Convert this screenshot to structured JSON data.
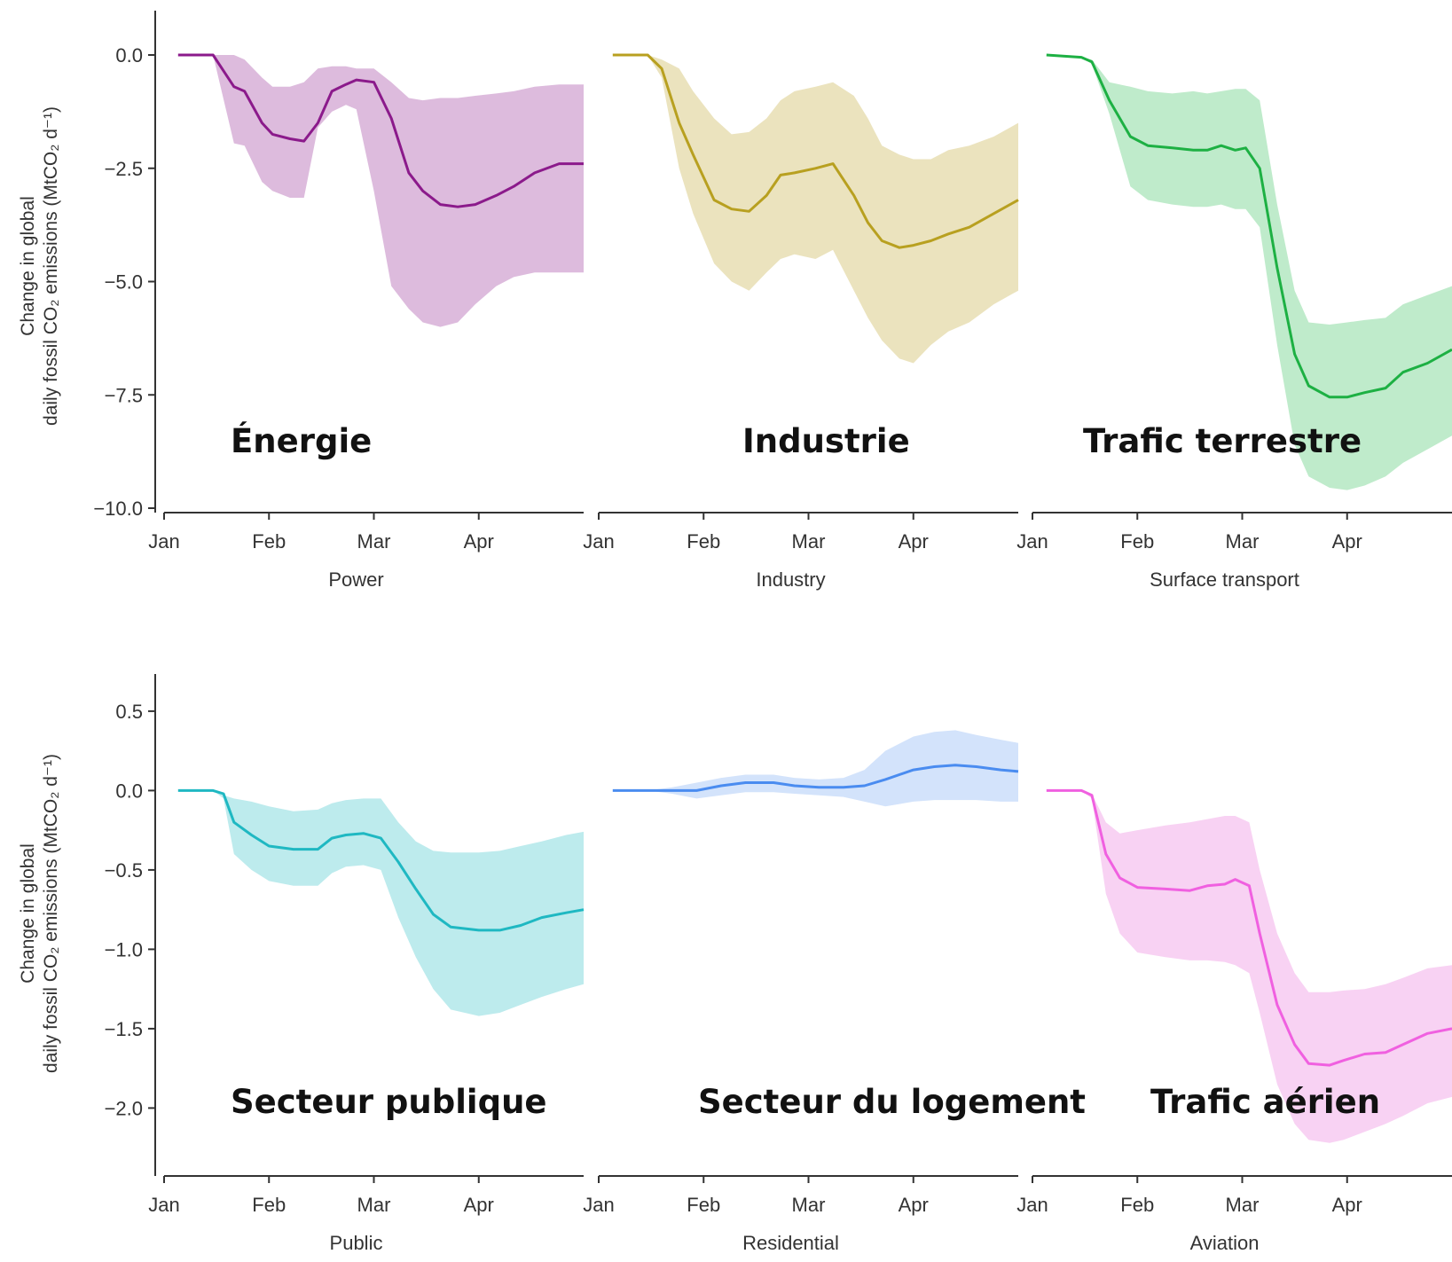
{
  "y_title_line1": "Change in global",
  "y_title_line2": "daily fossil CO₂ emissions (MtCO₂ d⁻¹)",
  "chart_data": [
    {
      "type": "area",
      "title": "Power",
      "overlay_label": "Énergie",
      "row": 0,
      "col": 0,
      "color": "#8B1A8B",
      "band_color": "#DDBBDD",
      "xlabel": "Power",
      "ylabel": "Change in global daily fossil CO₂ emissions (MtCO₂ d⁻¹)",
      "xticks": [
        "Jan",
        "Feb",
        "Mar",
        "Apr"
      ],
      "xlim": [
        0,
        120
      ],
      "ylim": [
        -10.0,
        0.0
      ],
      "yticks": [
        0.0,
        -2.5,
        -5.0,
        -7.5,
        -10.0
      ],
      "ytick_labels": [
        "0.0",
        "−2.5",
        "−5.0",
        "−7.5",
        "−10.0"
      ],
      "x": [
        4,
        14,
        20,
        23,
        28,
        31,
        36,
        40,
        44,
        48,
        52,
        55,
        60,
        65,
        70,
        74,
        79,
        84,
        89,
        95,
        100,
        106,
        113,
        120
      ],
      "mean": [
        0,
        0,
        -0.7,
        -0.8,
        -1.5,
        -1.75,
        -1.85,
        -1.9,
        -1.5,
        -0.8,
        -0.65,
        -0.55,
        -0.6,
        -1.4,
        -2.6,
        -3.0,
        -3.3,
        -3.35,
        -3.3,
        -3.1,
        -2.9,
        -2.6,
        -2.4,
        -2.4
      ],
      "upper": [
        0,
        0,
        0,
        -0.1,
        -0.5,
        -0.7,
        -0.7,
        -0.6,
        -0.3,
        -0.25,
        -0.25,
        -0.3,
        -0.3,
        -0.6,
        -0.95,
        -1.0,
        -0.95,
        -0.95,
        -0.9,
        -0.85,
        -0.8,
        -0.7,
        -0.65,
        -0.65
      ],
      "lower": [
        0,
        0,
        -1.95,
        -2.0,
        -2.8,
        -3.0,
        -3.15,
        -3.15,
        -1.6,
        -1.25,
        -1.1,
        -1.2,
        -3.0,
        -5.1,
        -5.6,
        -5.9,
        -6.0,
        -5.9,
        -5.5,
        -5.1,
        -4.9,
        -4.8,
        -4.8,
        -4.8
      ]
    },
    {
      "type": "area",
      "title": "Industry",
      "overlay_label": "Industrie",
      "row": 0,
      "col": 1,
      "color": "#B8A020",
      "band_color": "#EBE3BE",
      "xlabel": "Industry",
      "xticks": [
        "Jan",
        "Feb",
        "Mar",
        "Apr"
      ],
      "xlim": [
        0,
        120
      ],
      "ylim": [
        -10.0,
        0.0
      ],
      "yticks": [
        0.0,
        -2.5,
        -5.0,
        -7.5,
        -10.0
      ],
      "x": [
        4,
        14,
        18,
        23,
        27,
        33,
        38,
        43,
        48,
        52,
        56,
        62,
        67,
        73,
        77,
        81,
        86,
        90,
        95,
        100,
        106,
        113,
        120
      ],
      "mean": [
        0,
        0,
        -0.3,
        -1.5,
        -2.2,
        -3.2,
        -3.4,
        -3.45,
        -3.1,
        -2.65,
        -2.6,
        -2.5,
        -2.4,
        -3.1,
        -3.7,
        -4.1,
        -4.25,
        -4.2,
        -4.1,
        -3.95,
        -3.8,
        -3.5,
        -3.2
      ],
      "upper": [
        0,
        0,
        -0.1,
        -0.3,
        -0.8,
        -1.4,
        -1.75,
        -1.7,
        -1.4,
        -1.0,
        -0.8,
        -0.7,
        -0.6,
        -0.9,
        -1.4,
        -2.0,
        -2.2,
        -2.3,
        -2.3,
        -2.1,
        -2.0,
        -1.8,
        -1.5
      ],
      "lower": [
        0,
        0,
        -0.5,
        -2.5,
        -3.5,
        -4.6,
        -5.0,
        -5.2,
        -4.8,
        -4.5,
        -4.4,
        -4.5,
        -4.3,
        -5.2,
        -5.8,
        -6.3,
        -6.7,
        -6.8,
        -6.4,
        -6.1,
        -5.9,
        -5.5,
        -5.2
      ]
    },
    {
      "type": "area",
      "title": "Surface transport",
      "overlay_label": "Trafic terrestre",
      "row": 0,
      "col": 2,
      "color": "#1DB043",
      "band_color": "#BFEBCB",
      "xlabel": "Surface transport",
      "xticks": [
        "Jan",
        "Feb",
        "Mar",
        "Apr"
      ],
      "xlim": [
        0,
        120
      ],
      "ylim": [
        -10.0,
        0.0
      ],
      "yticks": [
        0.0,
        -2.5,
        -5.0,
        -7.5,
        -10.0
      ],
      "x": [
        4,
        14,
        17,
        22,
        28,
        33,
        40,
        46,
        50,
        54,
        58,
        61,
        65,
        70,
        75,
        79,
        85,
        90,
        95,
        101,
        106,
        113,
        120
      ],
      "mean": [
        0,
        -0.05,
        -0.15,
        -1.0,
        -1.8,
        -2.0,
        -2.05,
        -2.1,
        -2.1,
        -2.0,
        -2.1,
        -2.05,
        -2.5,
        -4.7,
        -6.6,
        -7.3,
        -7.55,
        -7.55,
        -7.45,
        -7.35,
        -7.0,
        -6.8,
        -6.5
      ],
      "upper": [
        0,
        -0.05,
        -0.1,
        -0.6,
        -0.7,
        -0.8,
        -0.85,
        -0.8,
        -0.85,
        -0.8,
        -0.75,
        -0.75,
        -1.0,
        -3.3,
        -5.2,
        -5.9,
        -5.95,
        -5.9,
        -5.85,
        -5.8,
        -5.5,
        -5.3,
        -5.1
      ],
      "lower": [
        0,
        -0.05,
        -0.2,
        -1.3,
        -2.9,
        -3.2,
        -3.3,
        -3.35,
        -3.35,
        -3.3,
        -3.4,
        -3.4,
        -3.8,
        -6.4,
        -8.6,
        -9.3,
        -9.55,
        -9.6,
        -9.5,
        -9.3,
        -9.0,
        -8.7,
        -8.4
      ]
    },
    {
      "type": "area",
      "title": "Public",
      "overlay_label": "Secteur publique",
      "row": 1,
      "col": 0,
      "color": "#1FB8C2",
      "band_color": "#BDEBED",
      "xlabel": "Public",
      "ylabel": "Change in global daily fossil CO₂ emissions (MtCO₂ d⁻¹)",
      "xticks": [
        "Jan",
        "Feb",
        "Mar",
        "Apr"
      ],
      "xlim": [
        0,
        120
      ],
      "ylim": [
        -2.4,
        0.6
      ],
      "yticks": [
        0.5,
        0.0,
        -0.5,
        -1.0,
        -1.5,
        -2.0
      ],
      "ytick_labels": [
        "0.5",
        "0.0",
        "−0.5",
        "−1.0",
        "−1.5",
        "−2.0"
      ],
      "x": [
        4,
        14,
        17,
        20,
        25,
        30,
        37,
        44,
        48,
        52,
        57,
        62,
        67,
        72,
        77,
        82,
        90,
        96,
        102,
        108,
        115,
        120
      ],
      "mean": [
        0,
        0,
        -0.02,
        -0.2,
        -0.28,
        -0.35,
        -0.37,
        -0.37,
        -0.3,
        -0.28,
        -0.27,
        -0.3,
        -0.45,
        -0.62,
        -0.78,
        -0.86,
        -0.88,
        -0.88,
        -0.85,
        -0.8,
        -0.77,
        -0.75
      ],
      "upper": [
        0,
        0,
        -0.03,
        -0.05,
        -0.07,
        -0.1,
        -0.13,
        -0.12,
        -0.08,
        -0.06,
        -0.05,
        -0.05,
        -0.2,
        -0.32,
        -0.38,
        -0.39,
        -0.39,
        -0.38,
        -0.35,
        -0.32,
        -0.28,
        -0.26
      ],
      "lower": [
        0,
        0,
        -0.05,
        -0.4,
        -0.5,
        -0.57,
        -0.6,
        -0.6,
        -0.52,
        -0.48,
        -0.47,
        -0.5,
        -0.8,
        -1.05,
        -1.25,
        -1.38,
        -1.42,
        -1.4,
        -1.35,
        -1.3,
        -1.25,
        -1.22
      ]
    },
    {
      "type": "area",
      "title": "Residential",
      "overlay_label": "Secteur du logement",
      "row": 1,
      "col": 1,
      "color": "#4A8CF0",
      "band_color": "#D3E3FB",
      "xlabel": "Residential",
      "xticks": [
        "Jan",
        "Feb",
        "Mar",
        "Apr"
      ],
      "xlim": [
        0,
        120
      ],
      "ylim": [
        -2.4,
        0.6
      ],
      "yticks": [
        0.5,
        0.0,
        -0.5,
        -1.0,
        -1.5,
        -2.0
      ],
      "x": [
        4,
        14,
        21,
        28,
        35,
        42,
        50,
        56,
        63,
        70,
        76,
        82,
        90,
        96,
        102,
        108,
        115,
        120
      ],
      "mean": [
        0,
        0,
        0,
        0,
        0.03,
        0.05,
        0.05,
        0.03,
        0.02,
        0.02,
        0.03,
        0.07,
        0.13,
        0.15,
        0.16,
        0.15,
        0.13,
        0.12
      ],
      "upper": [
        0,
        0,
        0.02,
        0.05,
        0.08,
        0.1,
        0.1,
        0.08,
        0.07,
        0.08,
        0.13,
        0.25,
        0.34,
        0.37,
        0.38,
        0.35,
        0.32,
        0.3
      ],
      "lower": [
        0,
        0,
        -0.02,
        -0.05,
        -0.03,
        -0.01,
        -0.01,
        -0.02,
        -0.03,
        -0.04,
        -0.07,
        -0.1,
        -0.07,
        -0.06,
        -0.06,
        -0.06,
        -0.07,
        -0.07
      ]
    },
    {
      "type": "area",
      "title": "Aviation",
      "overlay_label": "Trafic aérien",
      "row": 1,
      "col": 2,
      "color": "#F060E0",
      "band_color": "#F8D2F3",
      "xlabel": "Aviation",
      "xticks": [
        "Jan",
        "Feb",
        "Mar",
        "Apr"
      ],
      "xlim": [
        0,
        120
      ],
      "ylim": [
        -2.4,
        0.6
      ],
      "yticks": [
        0.5,
        0.0,
        -0.5,
        -1.0,
        -1.5,
        -2.0
      ],
      "x": [
        4,
        14,
        17,
        21,
        25,
        30,
        38,
        45,
        50,
        55,
        58,
        62,
        65,
        70,
        75,
        79,
        85,
        89,
        95,
        101,
        106,
        113,
        120
      ],
      "mean": [
        0,
        0,
        -0.03,
        -0.4,
        -0.55,
        -0.61,
        -0.62,
        -0.63,
        -0.6,
        -0.59,
        -0.56,
        -0.6,
        -0.9,
        -1.35,
        -1.6,
        -1.72,
        -1.73,
        -1.7,
        -1.66,
        -1.65,
        -1.6,
        -1.53,
        -1.5
      ],
      "upper": [
        0,
        0,
        -0.02,
        -0.2,
        -0.27,
        -0.25,
        -0.22,
        -0.2,
        -0.18,
        -0.16,
        -0.16,
        -0.2,
        -0.5,
        -0.9,
        -1.15,
        -1.27,
        -1.27,
        -1.26,
        -1.25,
        -1.22,
        -1.18,
        -1.12,
        -1.1
      ],
      "lower": [
        0,
        0,
        -0.05,
        -0.65,
        -0.9,
        -1.02,
        -1.05,
        -1.07,
        -1.07,
        -1.08,
        -1.1,
        -1.15,
        -1.4,
        -1.85,
        -2.1,
        -2.2,
        -2.22,
        -2.2,
        -2.15,
        -2.1,
        -2.05,
        -1.97,
        -1.93
      ]
    }
  ]
}
